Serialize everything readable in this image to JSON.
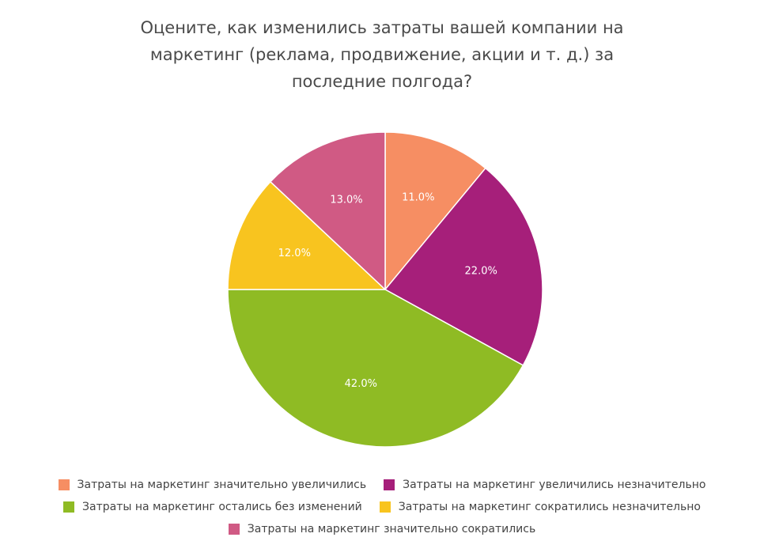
{
  "chart_data": {
    "type": "pie",
    "title": "Оцените, как изменились затраты вашей компании на маркетинг (реклама, продвижение, акции и т. д.) за последние полгода?",
    "slices": [
      {
        "label": "Затраты на маркетинг значительно увеличились",
        "value": 11.0,
        "display": "11.0%",
        "color": "#F68E63"
      },
      {
        "label": "Затраты на маркетинг увеличились незначительно",
        "value": 22.0,
        "display": "22.0%",
        "color": "#A61F7A"
      },
      {
        "label": "Затраты на маркетинг остались без изменений",
        "value": 42.0,
        "display": "42.0%",
        "color": "#8FBB24"
      },
      {
        "label": "Затраты на маркетинг сократились незначительно",
        "value": 12.0,
        "display": "12.0%",
        "color": "#F8C41F"
      },
      {
        "label": "Затраты на маркетинг значительно сократились",
        "value": 13.0,
        "display": "13.0%",
        "color": "#D05A84"
      }
    ],
    "start_angle": "12 o'clock",
    "direction": "clockwise",
    "legend_position": "bottom"
  }
}
